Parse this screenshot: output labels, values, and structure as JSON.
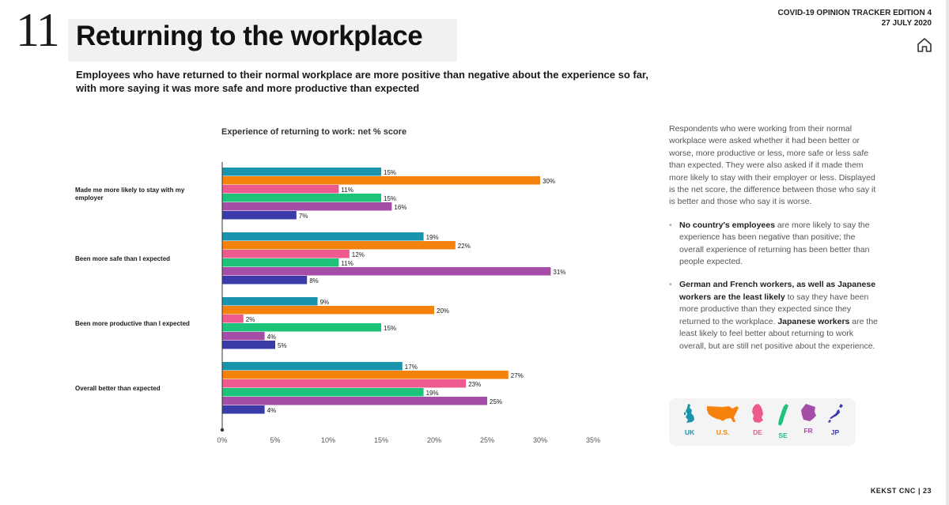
{
  "header": {
    "page_number": "11",
    "title": "Returning to the workplace",
    "edition": "COVID-19 OPINION TRACKER EDITION 4",
    "date": "27 JULY 2020",
    "subtitle": "Employees who have returned to their normal workplace are more positive than negative about the experience so far, with more saying it was more safe and more productive than expected"
  },
  "colors": {
    "UK": "#1a93ad",
    "U.S.": "#f5820d",
    "DE": "#ec5a8f",
    "SE": "#1ec37a",
    "FR": "#a54ea8",
    "JP": "#3a3aa8"
  },
  "chart_data": {
    "type": "bar",
    "orientation": "horizontal",
    "title": "Experience of returning to work: net % score",
    "categories": [
      "Made me more likely to stay with my employer",
      "Been more safe than I expected",
      "Been more productive than I expected",
      "Overall better than expected"
    ],
    "series": [
      {
        "name": "UK",
        "values": [
          15,
          19,
          9,
          17
        ]
      },
      {
        "name": "U.S.",
        "values": [
          30,
          22,
          20,
          27
        ]
      },
      {
        "name": "DE",
        "values": [
          11,
          12,
          2,
          23
        ]
      },
      {
        "name": "SE",
        "values": [
          15,
          11,
          15,
          19
        ]
      },
      {
        "name": "FR",
        "values": [
          16,
          31,
          4,
          25
        ]
      },
      {
        "name": "JP",
        "values": [
          7,
          8,
          5,
          4
        ]
      }
    ],
    "xlim": [
      0,
      35
    ],
    "xticks": [
      "0%",
      "5%",
      "10%",
      "15%",
      "20%",
      "25%",
      "30%",
      "35%"
    ],
    "value_suffix": "%"
  },
  "sidebar": {
    "intro": "Respondents who were working from their normal workplace were asked whether it had been better or worse, more productive or less, more safe or less safe than expected. They were also asked if it made them more likely to stay with their employer or less. Displayed is the net score, the difference between those who say it is better and those who say it is worse.",
    "bullet1_bold": "No country's employees",
    "bullet1_text": " are more likely to say the experience has been negative than positive; the overall experience of returning has been better than people expected.",
    "bullet2_bold1": "German and French workers, as well as Japanese workers are the least likely",
    "bullet2_text1": " to say they have been more productive than they expected since they returned to the workplace. ",
    "bullet2_bold2": "Japanese workers",
    "bullet2_text2": " are the least likely to feel better about returning to work overall, but are still net positive about the experience."
  },
  "legend": [
    {
      "label": "UK",
      "icon": "uk-map-icon"
    },
    {
      "label": "U.S.",
      "icon": "us-map-icon"
    },
    {
      "label": "DE",
      "icon": "germany-map-icon"
    },
    {
      "label": "SE",
      "icon": "sweden-map-icon"
    },
    {
      "label": "FR",
      "icon": "france-map-icon"
    },
    {
      "label": "JP",
      "icon": "japan-map-icon"
    }
  ],
  "footer": {
    "brand": "KEKST CNC",
    "page": "23"
  }
}
